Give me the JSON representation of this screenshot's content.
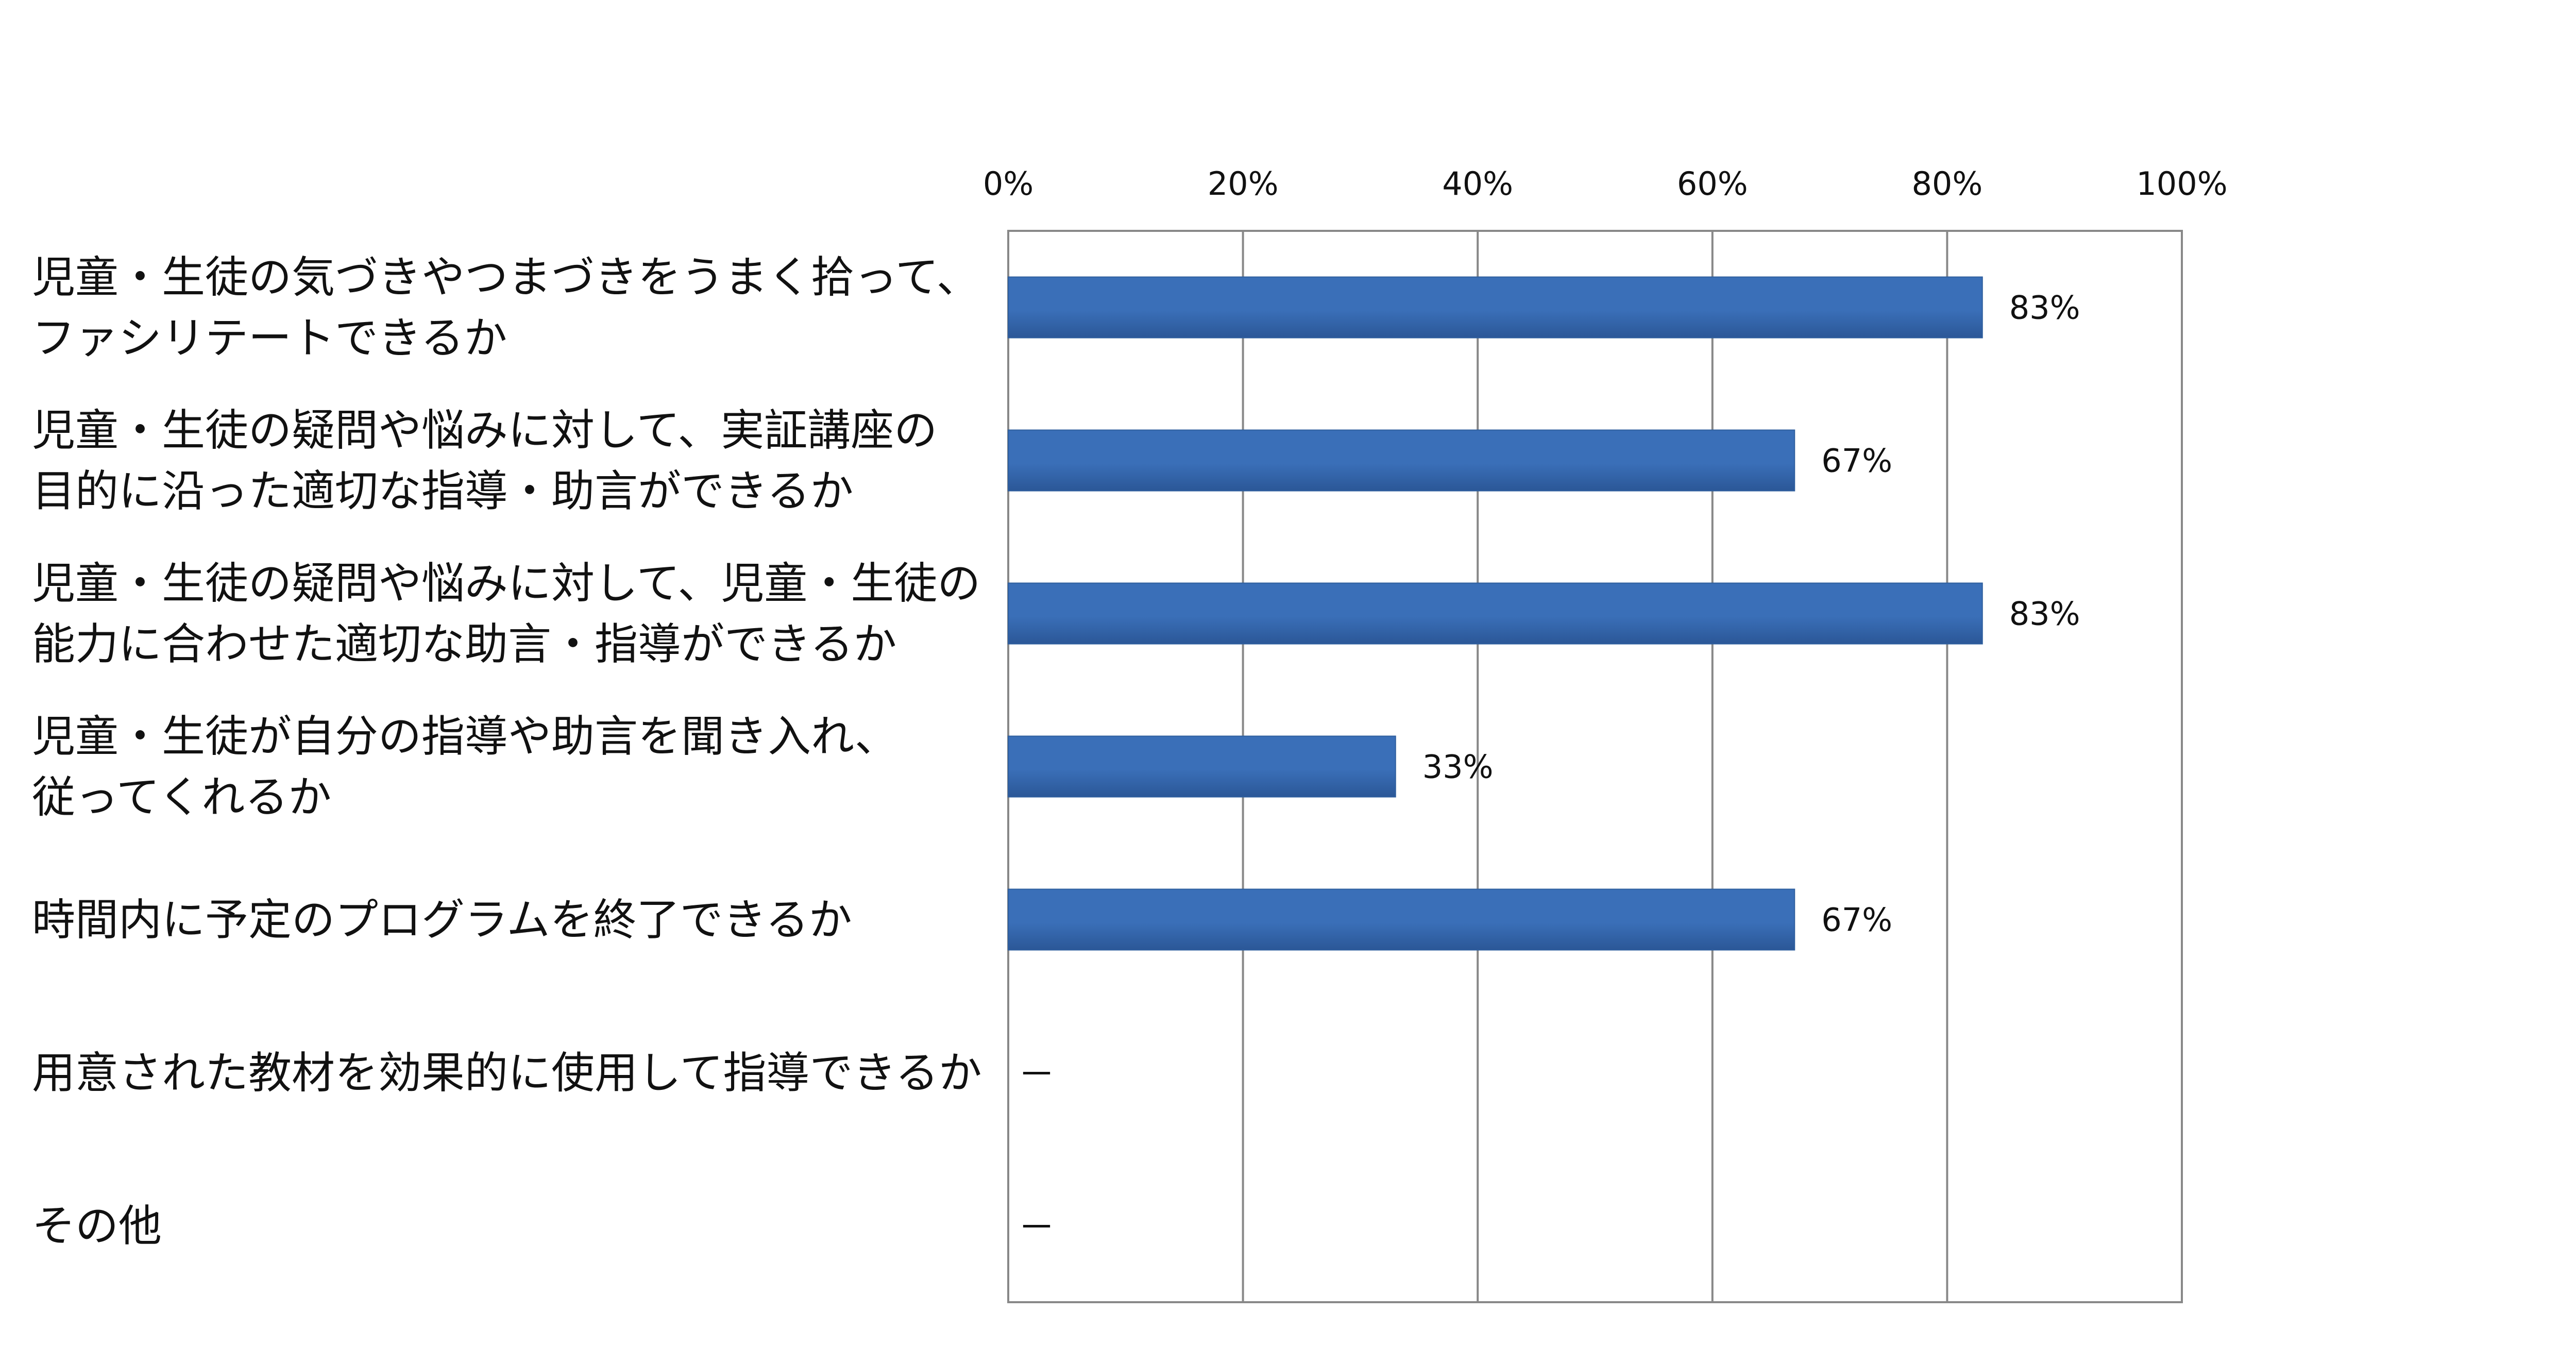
{
  "chart_data": {
    "type": "bar",
    "orientation": "horizontal",
    "categories": [
      [
        "児童・生徒の気づきやつまづきをうまく拾って、",
        "ファシリテートできるか"
      ],
      [
        "児童・生徒の疑問や悩みに対して、実証講座の",
        "目的に沿った適切な指導・助言ができるか"
      ],
      [
        "児童・生徒の疑問や悩みに対して、児童・生徒の",
        "能力に合わせた適切な助言・指導ができるか"
      ],
      [
        "児童・生徒が自分の指導や助言を聞き入れ、",
        "従ってくれるか"
      ],
      [
        "時間内に予定のプログラムを終了できるか"
      ],
      [
        "用意された教材を効果的に使用して指導できるか"
      ],
      [
        "その他"
      ]
    ],
    "values": [
      83,
      67,
      83,
      33,
      67,
      null,
      null
    ],
    "data_labels": [
      "83%",
      "67%",
      "83%",
      "33%",
      "67%",
      "－",
      "－"
    ],
    "xlim": [
      0,
      100
    ],
    "xticks": [
      "0%",
      "20%",
      "40%",
      "60%",
      "80%",
      "100%"
    ],
    "x_axis_position": "top",
    "grid": true,
    "bar_color": "#3A6FB8",
    "bar_color_dark": "#2B5797",
    "title": "",
    "xlabel": "",
    "ylabel": ""
  }
}
